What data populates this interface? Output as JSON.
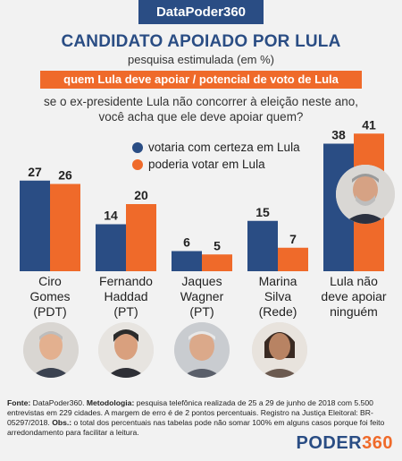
{
  "header": {
    "tab": "DataPoder360",
    "title": "CANDIDATO APOIADO POR LULA",
    "subtitle": "pesquisa estimulada (em %)",
    "banner": "quem Lula deve apoiar / potencial de voto de Lula",
    "question_line1": "se o ex-presidente Lula não concorrer à eleição neste ano,",
    "question_line2": "você acha que ele deve apoiar quem?"
  },
  "colors": {
    "series1": "#2a4d84",
    "series2": "#ef6a2a"
  },
  "chart_data": {
    "type": "bar",
    "categories": [
      "Ciro Gomes (PDT)",
      "Fernando Haddad (PT)",
      "Jaques Wagner (PT)",
      "Marina Silva (Rede)",
      "Lula não deve apoiar ninguém"
    ],
    "category_lines": [
      [
        "Ciro",
        "Gomes",
        "(PDT)"
      ],
      [
        "Fernando",
        "Haddad",
        "(PT)"
      ],
      [
        "Jaques",
        "Wagner",
        "(PT)"
      ],
      [
        "Marina",
        "Silva",
        "(Rede)"
      ],
      [
        "Lula não",
        "deve apoiar",
        "ninguém"
      ]
    ],
    "series": [
      {
        "name": "votaria com certeza em Lula",
        "values": [
          27,
          14,
          6,
          15,
          38
        ]
      },
      {
        "name": "poderia votar em Lula",
        "values": [
          26,
          20,
          5,
          7,
          41
        ]
      }
    ],
    "ylim": [
      0,
      45
    ],
    "legend": "top"
  },
  "footnote": {
    "source_label": "Fonte:",
    "source": "DataPoder360.",
    "method_label": "Metodologia:",
    "method": "pesquisa telefônica realizada de 25 a 29 de junho de 2018 com 5.500 entrevistas em 229 cidades. A margem de erro é de 2 pontos percentuais. Registro na Justiça Eleitoral: BR-05297/2018.",
    "obs_label": "Obs.:",
    "obs": "o total dos percentuais nas tabelas pode não somar 100% em alguns casos porque foi feito arredondamento para facilitar a leitura."
  },
  "brand": {
    "part1": "PODER",
    "part2": "360"
  }
}
